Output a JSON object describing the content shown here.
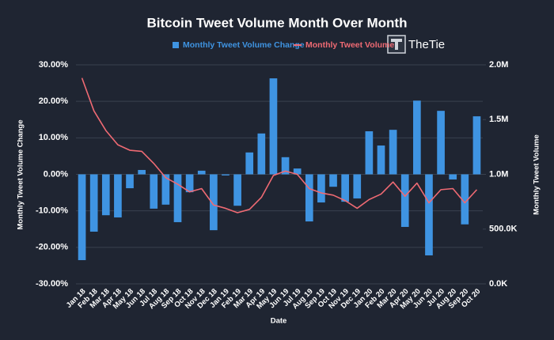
{
  "chart_data": {
    "type": "bar_line",
    "title": "Bitcoin Tweet Volume Month Over Month",
    "brand": "TheTie",
    "x_label": "Date",
    "y_label": "Monthly Tweet Volume Change",
    "y2_label": "Monthly Tweet Volume",
    "categories": [
      "Jan 18",
      "Feb 18",
      "Mar 18",
      "Apr 18",
      "May 18",
      "Jun 18",
      "Jul 18",
      "Aug 18",
      "Sep 18",
      "Oct 18",
      "Nov 18",
      "Dec 18",
      "Jan 19",
      "Feb 19",
      "Mar 19",
      "Apr 19",
      "May 19",
      "Jun 19",
      "Jul 19",
      "Aug 19",
      "Sep 19",
      "Oct 19",
      "Nov 19",
      "Dec 19",
      "Jan 20",
      "Feb 20",
      "Mar 20",
      "Apr 20",
      "May 20",
      "Jun 20",
      "Jul 20",
      "Aug 20",
      "Sep 20",
      "Oct 20"
    ],
    "series": [
      {
        "name": "Monthly Tweet Volume Change",
        "type": "bar",
        "axis": "y",
        "color": "#3f94e2",
        "values": [
          -23.5,
          -15.7,
          -11.2,
          -11.8,
          -3.8,
          1.2,
          -9.4,
          -8.3,
          -13.1,
          -4.9,
          1.0,
          -15.3,
          -0.3,
          -8.6,
          6.0,
          11.2,
          26.3,
          4.7,
          1.6,
          -12.9,
          -7.7,
          -3.4,
          -7.5,
          -6.6,
          11.8,
          7.9,
          12.2,
          -14.4,
          20.2,
          -22.2,
          17.4,
          -1.4,
          -13.7,
          15.9
        ]
      },
      {
        "name": "Monthly Tweet Volume",
        "type": "line",
        "axis": "y2",
        "color": "#ef6a73",
        "values": [
          1880000,
          1580000,
          1400000,
          1270000,
          1220000,
          1210000,
          1100000,
          970000,
          910000,
          840000,
          870000,
          720000,
          690000,
          650000,
          680000,
          790000,
          990000,
          1030000,
          1000000,
          870000,
          830000,
          810000,
          760000,
          690000,
          770000,
          820000,
          930000,
          800000,
          920000,
          740000,
          860000,
          870000,
          740000,
          860000
        ]
      }
    ],
    "ylim": [
      -30,
      30
    ],
    "yticks": [
      {
        "value": -30,
        "label": "-30.00%"
      },
      {
        "value": -20,
        "label": "-20.00%"
      },
      {
        "value": -10,
        "label": "-10.00%"
      },
      {
        "value": 0,
        "label": "0.00%"
      },
      {
        "value": 10,
        "label": "10.00%"
      },
      {
        "value": 20,
        "label": "20.00%"
      },
      {
        "value": 30,
        "label": "30.00%"
      }
    ],
    "y2lim": [
      0,
      2000000
    ],
    "y2ticks": [
      {
        "value": 0,
        "label": "0.0K"
      },
      {
        "value": 500000,
        "label": "500.0K"
      },
      {
        "value": 1000000,
        "label": "1.0M"
      },
      {
        "value": 1500000,
        "label": "1.5M"
      },
      {
        "value": 2000000,
        "label": "2.0M"
      }
    ],
    "grid": true
  }
}
